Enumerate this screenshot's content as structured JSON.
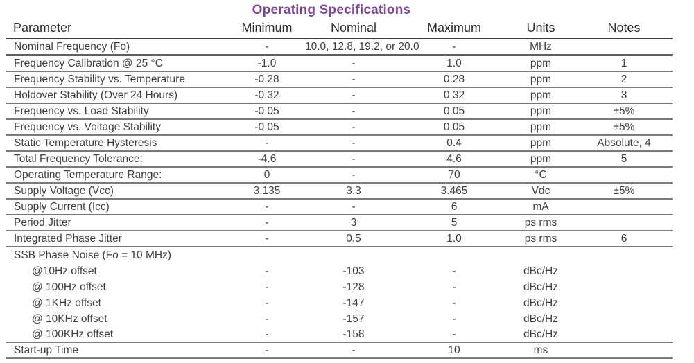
{
  "title": "Operating Specifications",
  "title_color": "#7d4694",
  "text_color": "#404040",
  "divider_color": "#7a7a7a",
  "table": {
    "columns": [
      "Parameter",
      "Minimum",
      "Nominal",
      "Maximum",
      "Units",
      "Notes"
    ],
    "rows": [
      {
        "parameter": "Nominal Frequency (Fo)",
        "minimum": "-",
        "nominal": "10.0, 12.8, 19.2, or 20.0",
        "maximum": "-",
        "units": "MHz",
        "notes": "",
        "heavy_divider": true
      },
      {
        "parameter": "Frequency Calibration @ 25 °C",
        "minimum": "-1.0",
        "nominal": "-",
        "maximum": "1.0",
        "units": "ppm",
        "notes": "1"
      },
      {
        "parameter": "Frequency Stability vs. Temperature",
        "minimum": "-0.28",
        "nominal": "-",
        "maximum": "0.28",
        "units": "ppm",
        "notes": "2"
      },
      {
        "parameter": "Holdover Stability (Over 24 Hours)",
        "minimum": "-0.32",
        "nominal": "-",
        "maximum": "0.32",
        "units": "ppm",
        "notes": "3"
      },
      {
        "parameter": "Frequency vs. Load Stability",
        "minimum": "-0.05",
        "nominal": "-",
        "maximum": "0.05",
        "units": "ppm",
        "notes": "±5%"
      },
      {
        "parameter": "Frequency vs. Voltage Stability",
        "minimum": "-0.05",
        "nominal": "-",
        "maximum": "0.05",
        "units": "ppm",
        "notes": "±5%"
      },
      {
        "parameter": "Static Temperature Hysteresis",
        "minimum": "-",
        "nominal": "-",
        "maximum": "0.4",
        "units": "ppm",
        "notes": "Absolute, 4"
      },
      {
        "parameter": "Total Frequency Tolerance:",
        "minimum": "-4.6",
        "nominal": "-",
        "maximum": "4.6",
        "units": "ppm",
        "notes": "5"
      },
      {
        "parameter": "Operating Temperature Range:",
        "minimum": "0",
        "nominal": "-",
        "maximum": "70",
        "units": "°C",
        "notes": ""
      },
      {
        "parameter": "Supply Voltage (Vcc)",
        "minimum": "3.135",
        "nominal": "3.3",
        "maximum": "3.465",
        "units": "Vdc",
        "notes": "±5%"
      },
      {
        "parameter": "Supply Current (Icc)",
        "minimum": "-",
        "nominal": "-",
        "maximum": "6",
        "units": "mA",
        "notes": ""
      },
      {
        "parameter": "Period Jitter",
        "minimum": "-",
        "nominal": "3",
        "maximum": "5",
        "units": "ps rms",
        "notes": ""
      },
      {
        "parameter": "Integrated Phase Jitter",
        "minimum": "-",
        "nominal": "0.5",
        "maximum": "1.0",
        "units": "ps rms",
        "notes": "6"
      },
      {
        "parameter": "SSB Phase Noise (Fo = 10 MHz)",
        "minimum": "",
        "nominal": "",
        "maximum": "",
        "units": "",
        "notes": "",
        "no_divider": true
      },
      {
        "parameter": "@10Hz offset",
        "minimum": "-",
        "nominal": "-103",
        "maximum": "-",
        "units": "dBc/Hz",
        "notes": "",
        "indent": true,
        "no_divider": true
      },
      {
        "parameter": "@ 100Hz offset",
        "minimum": "-",
        "nominal": "-128",
        "maximum": "-",
        "units": "dBc/Hz",
        "notes": "",
        "indent": true,
        "no_divider": true
      },
      {
        "parameter": "@ 1KHz offset",
        "minimum": "-",
        "nominal": "-147",
        "maximum": "-",
        "units": "dBc/Hz",
        "notes": "",
        "indent": true,
        "no_divider": true
      },
      {
        "parameter": "@ 10KHz offset",
        "minimum": "-",
        "nominal": "-157",
        "maximum": "-",
        "units": "dBc/Hz",
        "notes": "",
        "indent": true,
        "no_divider": true
      },
      {
        "parameter": "@ 100KHz offset",
        "minimum": "-",
        "nominal": "-158",
        "maximum": "-",
        "units": "dBc/Hz",
        "notes": "",
        "indent": true
      },
      {
        "parameter": "Start-up Time",
        "minimum": "-",
        "nominal": "-",
        "maximum": "10",
        "units": "ms",
        "notes": ""
      }
    ]
  }
}
